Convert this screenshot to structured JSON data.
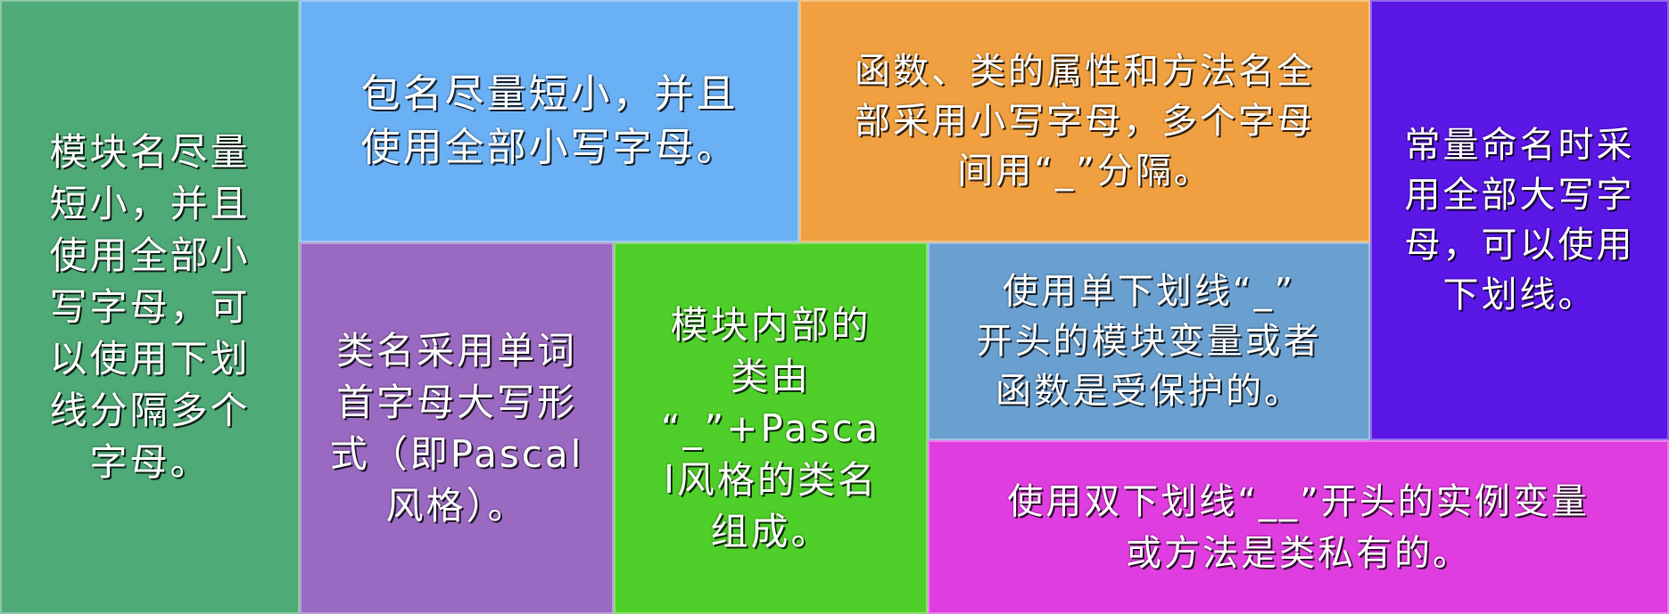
{
  "colors": {
    "module": "#4eaa77",
    "package": "#6ab0f5",
    "func": "#f0a040",
    "const": "#5a17e6",
    "class": "#9a6ac2",
    "inner": "#4ecf29",
    "single": "#6aa0d0",
    "double": "#e03de0"
  },
  "tiles": {
    "module": "模块名尽量\n短小，并且\n使用全部小\n写字母，可\n以使用下划\n线分隔多个\n字母。",
    "package": "包名尽量短小，并且\n使用全部小写字母。",
    "func": "函数、类的属性和方法名全\n部采用小写字母，多个字母\n间用“_”分隔。",
    "const": "常量命名时采\n用全部大写字\n母，可以使用\n下划线。",
    "class": "类名采用单词\n首字母大写形\n式（即Pascal\n风格）。",
    "inner": "模块内部的\n类由\n“_”+Pasca\nl风格的类名\n组成。",
    "single": "使用单下划线“_”\n开头的模块变量或者\n函数是受保护的。",
    "double": "使用双下划线“__”开头的实例变量\n或方法是类私有的。"
  }
}
